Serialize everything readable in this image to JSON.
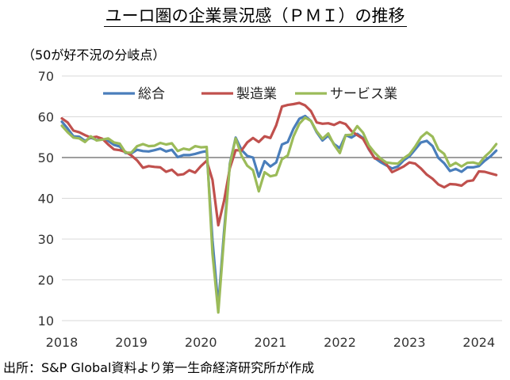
{
  "title": "ユーロ圏の企業景況感（ＰＭＩ）の推移",
  "subtitle": "（50が好不況の分岐点）",
  "source": "出所：S&P Global資料より第一生命経済研究所が作成",
  "chart_data": {
    "type": "line",
    "title": "ユーロ圏の企業景況感（ＰＭＩ）の推移",
    "ylabel": "（50が好不況の分岐点）",
    "ylim": [
      10,
      70
    ],
    "yticks": [
      10,
      20,
      30,
      40,
      50,
      60,
      70
    ],
    "xlim": [
      2018.0,
      2024.3333
    ],
    "xticks": [
      2018,
      2019,
      2020,
      2021,
      2022,
      2023,
      2024
    ],
    "reference_line": 50,
    "legend_position": "top",
    "series": [
      {
        "name": "総合",
        "color": "#4a7ebb",
        "points": [
          [
            2018.0,
            58.8
          ],
          [
            2018.0833,
            57.1
          ],
          [
            2018.1667,
            55.2
          ],
          [
            2018.25,
            55.1
          ],
          [
            2018.3333,
            54.1
          ],
          [
            2018.4167,
            54.9
          ],
          [
            2018.5,
            54.3
          ],
          [
            2018.5833,
            54.5
          ],
          [
            2018.6667,
            54.1
          ],
          [
            2018.75,
            53.1
          ],
          [
            2018.8333,
            52.7
          ],
          [
            2018.9167,
            51.1
          ],
          [
            2019.0,
            51.0
          ],
          [
            2019.0833,
            51.9
          ],
          [
            2019.1667,
            51.6
          ],
          [
            2019.25,
            51.5
          ],
          [
            2019.3333,
            51.8
          ],
          [
            2019.4167,
            52.2
          ],
          [
            2019.5,
            51.5
          ],
          [
            2019.5833,
            51.9
          ],
          [
            2019.6667,
            50.1
          ],
          [
            2019.75,
            50.6
          ],
          [
            2019.8333,
            50.6
          ],
          [
            2019.9167,
            50.9
          ],
          [
            2020.0,
            51.3
          ],
          [
            2020.0833,
            51.6
          ],
          [
            2020.1667,
            29.7
          ],
          [
            2020.25,
            13.6
          ],
          [
            2020.3333,
            31.9
          ],
          [
            2020.4167,
            48.5
          ],
          [
            2020.5,
            54.9
          ],
          [
            2020.5833,
            51.9
          ],
          [
            2020.6667,
            50.4
          ],
          [
            2020.75,
            50.0
          ],
          [
            2020.8333,
            45.3
          ],
          [
            2020.9167,
            49.1
          ],
          [
            2021.0,
            47.8
          ],
          [
            2021.0833,
            48.8
          ],
          [
            2021.1667,
            53.2
          ],
          [
            2021.25,
            53.8
          ],
          [
            2021.3333,
            57.1
          ],
          [
            2021.4167,
            59.5
          ],
          [
            2021.5,
            60.2
          ],
          [
            2021.5833,
            59.0
          ],
          [
            2021.6667,
            56.2
          ],
          [
            2021.75,
            54.2
          ],
          [
            2021.8333,
            55.4
          ],
          [
            2021.9167,
            53.3
          ],
          [
            2022.0,
            52.3
          ],
          [
            2022.0833,
            55.5
          ],
          [
            2022.1667,
            54.9
          ],
          [
            2022.25,
            55.8
          ],
          [
            2022.3333,
            54.8
          ],
          [
            2022.4167,
            52.0
          ],
          [
            2022.5,
            49.9
          ],
          [
            2022.5833,
            48.9
          ],
          [
            2022.6667,
            48.1
          ],
          [
            2022.75,
            47.3
          ],
          [
            2022.8333,
            47.8
          ],
          [
            2022.9167,
            49.3
          ],
          [
            2023.0,
            50.3
          ],
          [
            2023.0833,
            52.0
          ],
          [
            2023.1667,
            53.7
          ],
          [
            2023.25,
            54.1
          ],
          [
            2023.3333,
            52.8
          ],
          [
            2023.4167,
            49.9
          ],
          [
            2023.5,
            48.6
          ],
          [
            2023.5833,
            46.7
          ],
          [
            2023.6667,
            47.2
          ],
          [
            2023.75,
            46.5
          ],
          [
            2023.8333,
            47.6
          ],
          [
            2023.9167,
            47.6
          ],
          [
            2024.0,
            47.9
          ],
          [
            2024.0833,
            49.2
          ],
          [
            2024.1667,
            50.3
          ],
          [
            2024.25,
            51.7
          ]
        ]
      },
      {
        "name": "製造業",
        "color": "#c0504d",
        "points": [
          [
            2018.0,
            59.6
          ],
          [
            2018.0833,
            58.6
          ],
          [
            2018.1667,
            56.6
          ],
          [
            2018.25,
            56.2
          ],
          [
            2018.3333,
            55.5
          ],
          [
            2018.4167,
            54.9
          ],
          [
            2018.5,
            55.1
          ],
          [
            2018.5833,
            54.6
          ],
          [
            2018.6667,
            53.2
          ],
          [
            2018.75,
            52.0
          ],
          [
            2018.8333,
            51.8
          ],
          [
            2018.9167,
            51.4
          ],
          [
            2019.0,
            50.5
          ],
          [
            2019.0833,
            49.3
          ],
          [
            2019.1667,
            47.5
          ],
          [
            2019.25,
            47.9
          ],
          [
            2019.3333,
            47.7
          ],
          [
            2019.4167,
            47.6
          ],
          [
            2019.5,
            46.5
          ],
          [
            2019.5833,
            47.0
          ],
          [
            2019.6667,
            45.7
          ],
          [
            2019.75,
            45.9
          ],
          [
            2019.8333,
            46.9
          ],
          [
            2019.9167,
            46.3
          ],
          [
            2020.0,
            47.9
          ],
          [
            2020.0833,
            49.2
          ],
          [
            2020.1667,
            44.5
          ],
          [
            2020.25,
            33.4
          ],
          [
            2020.3333,
            39.4
          ],
          [
            2020.4167,
            47.4
          ],
          [
            2020.5,
            51.8
          ],
          [
            2020.5833,
            51.7
          ],
          [
            2020.6667,
            53.7
          ],
          [
            2020.75,
            54.8
          ],
          [
            2020.8333,
            53.8
          ],
          [
            2020.9167,
            55.2
          ],
          [
            2021.0,
            54.8
          ],
          [
            2021.0833,
            57.9
          ],
          [
            2021.1667,
            62.5
          ],
          [
            2021.25,
            62.9
          ],
          [
            2021.3333,
            63.1
          ],
          [
            2021.4167,
            63.4
          ],
          [
            2021.5,
            62.8
          ],
          [
            2021.5833,
            61.4
          ],
          [
            2021.6667,
            58.6
          ],
          [
            2021.75,
            58.3
          ],
          [
            2021.8333,
            58.4
          ],
          [
            2021.9167,
            58.0
          ],
          [
            2022.0,
            58.7
          ],
          [
            2022.0833,
            58.2
          ],
          [
            2022.1667,
            56.5
          ],
          [
            2022.25,
            55.5
          ],
          [
            2022.3333,
            54.6
          ],
          [
            2022.4167,
            52.1
          ],
          [
            2022.5,
            49.8
          ],
          [
            2022.5833,
            49.6
          ],
          [
            2022.6667,
            48.4
          ],
          [
            2022.75,
            46.4
          ],
          [
            2022.8333,
            47.1
          ],
          [
            2022.9167,
            47.8
          ],
          [
            2023.0,
            48.8
          ],
          [
            2023.0833,
            48.5
          ],
          [
            2023.1667,
            47.3
          ],
          [
            2023.25,
            45.8
          ],
          [
            2023.3333,
            44.8
          ],
          [
            2023.4167,
            43.4
          ],
          [
            2023.5,
            42.7
          ],
          [
            2023.5833,
            43.5
          ],
          [
            2023.6667,
            43.4
          ],
          [
            2023.75,
            43.1
          ],
          [
            2023.8333,
            44.2
          ],
          [
            2023.9167,
            44.4
          ],
          [
            2024.0,
            46.6
          ],
          [
            2024.0833,
            46.5
          ],
          [
            2024.1667,
            46.1
          ],
          [
            2024.25,
            45.7
          ]
        ]
      },
      {
        "name": "サービス業",
        "color": "#9bbb59",
        "points": [
          [
            2018.0,
            57.8
          ],
          [
            2018.0833,
            56.2
          ],
          [
            2018.1667,
            54.9
          ],
          [
            2018.25,
            54.7
          ],
          [
            2018.3333,
            53.8
          ],
          [
            2018.4167,
            55.2
          ],
          [
            2018.5,
            54.2
          ],
          [
            2018.5833,
            54.4
          ],
          [
            2018.6667,
            54.7
          ],
          [
            2018.75,
            53.7
          ],
          [
            2018.8333,
            53.4
          ],
          [
            2018.9167,
            51.2
          ],
          [
            2019.0,
            51.2
          ],
          [
            2019.0833,
            52.8
          ],
          [
            2019.1667,
            53.3
          ],
          [
            2019.25,
            52.8
          ],
          [
            2019.3333,
            52.9
          ],
          [
            2019.4167,
            53.6
          ],
          [
            2019.5,
            53.2
          ],
          [
            2019.5833,
            53.5
          ],
          [
            2019.6667,
            51.6
          ],
          [
            2019.75,
            52.2
          ],
          [
            2019.8333,
            51.9
          ],
          [
            2019.9167,
            52.8
          ],
          [
            2020.0,
            52.5
          ],
          [
            2020.0833,
            52.6
          ],
          [
            2020.1667,
            26.4
          ],
          [
            2020.25,
            12.0
          ],
          [
            2020.3333,
            30.5
          ],
          [
            2020.4167,
            48.3
          ],
          [
            2020.5,
            54.7
          ],
          [
            2020.5833,
            50.5
          ],
          [
            2020.6667,
            48.0
          ],
          [
            2020.75,
            46.9
          ],
          [
            2020.8333,
            41.7
          ],
          [
            2020.9167,
            46.4
          ],
          [
            2021.0,
            45.4
          ],
          [
            2021.0833,
            45.7
          ],
          [
            2021.1667,
            49.6
          ],
          [
            2021.25,
            50.5
          ],
          [
            2021.3333,
            55.2
          ],
          [
            2021.4167,
            58.3
          ],
          [
            2021.5,
            59.8
          ],
          [
            2021.5833,
            59.0
          ],
          [
            2021.6667,
            56.4
          ],
          [
            2021.75,
            54.6
          ],
          [
            2021.8333,
            55.9
          ],
          [
            2021.9167,
            53.1
          ],
          [
            2022.0,
            51.1
          ],
          [
            2022.0833,
            55.5
          ],
          [
            2022.1667,
            55.6
          ],
          [
            2022.25,
            57.7
          ],
          [
            2022.3333,
            56.1
          ],
          [
            2022.4167,
            53.0
          ],
          [
            2022.5,
            51.2
          ],
          [
            2022.5833,
            49.8
          ],
          [
            2022.6667,
            48.8
          ],
          [
            2022.75,
            48.6
          ],
          [
            2022.8333,
            48.5
          ],
          [
            2022.9167,
            49.8
          ],
          [
            2023.0,
            50.8
          ],
          [
            2023.0833,
            52.7
          ],
          [
            2023.1667,
            55.0
          ],
          [
            2023.25,
            56.2
          ],
          [
            2023.3333,
            55.1
          ],
          [
            2023.4167,
            52.0
          ],
          [
            2023.5,
            50.9
          ],
          [
            2023.5833,
            47.9
          ],
          [
            2023.6667,
            48.7
          ],
          [
            2023.75,
            47.8
          ],
          [
            2023.8333,
            48.7
          ],
          [
            2023.9167,
            48.8
          ],
          [
            2024.0,
            48.4
          ],
          [
            2024.0833,
            50.2
          ],
          [
            2024.1667,
            51.5
          ],
          [
            2024.25,
            53.3
          ]
        ]
      }
    ]
  }
}
